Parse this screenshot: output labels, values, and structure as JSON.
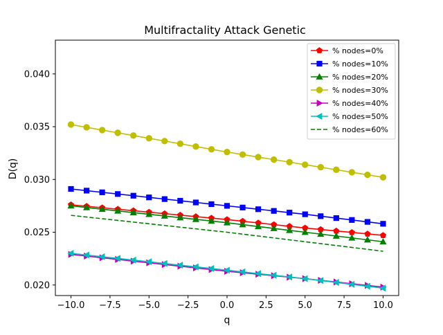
{
  "chart_data": {
    "type": "line",
    "title": "Multifractality Attack Genetic",
    "xlabel": "q",
    "ylabel": "D(q)",
    "xlim": [
      -11,
      11
    ],
    "ylim": [
      0.019,
      0.0432
    ],
    "xticks": [
      -10.0,
      -7.5,
      -5.0,
      -2.5,
      0.0,
      2.5,
      5.0,
      7.5,
      10.0
    ],
    "xtick_labels": [
      "−10.0",
      "−7.5",
      "−5.0",
      "−2.5",
      "0.0",
      "2.5",
      "5.0",
      "7.5",
      "10.0"
    ],
    "yticks": [
      0.02,
      0.025,
      0.03,
      0.035,
      0.04
    ],
    "ytick_labels": [
      "0.020",
      "0.025",
      "0.030",
      "0.035",
      "0.040"
    ],
    "grid": false,
    "legend_position": "top-right",
    "x": [
      -10,
      -9,
      -8,
      -7,
      -6,
      -5,
      -4,
      -3,
      -2,
      -1,
      0,
      1,
      2,
      3,
      4,
      5,
      6,
      7,
      8,
      9,
      10
    ],
    "series": [
      {
        "name": "% nodes=0%",
        "color": "#ff0000",
        "marker": "pentagon",
        "linestyle": "solid",
        "values": [
          0.0276,
          0.02746,
          0.02732,
          0.02718,
          0.02704,
          0.0269,
          0.02676,
          0.02662,
          0.02648,
          0.02634,
          0.0262,
          0.02604,
          0.02588,
          0.02572,
          0.02556,
          0.0254,
          0.02526,
          0.02512,
          0.02498,
          0.02484,
          0.0247
        ]
      },
      {
        "name": "% nodes=10%",
        "color": "#0000ff",
        "marker": "square",
        "linestyle": "solid",
        "values": [
          0.0291,
          0.02894,
          0.02878,
          0.02862,
          0.02846,
          0.0283,
          0.02814,
          0.02798,
          0.02782,
          0.02766,
          0.0275,
          0.02734,
          0.02718,
          0.02702,
          0.02686,
          0.0267,
          0.02652,
          0.02634,
          0.02616,
          0.02598,
          0.0258
        ]
      },
      {
        "name": "% nodes=20%",
        "color": "#008000",
        "marker": "triangle-up",
        "linestyle": "solid",
        "values": [
          0.0275,
          0.02734,
          0.02718,
          0.02702,
          0.02686,
          0.0267,
          0.02654,
          0.02638,
          0.02622,
          0.02606,
          0.0259,
          0.02572,
          0.02554,
          0.02536,
          0.02518,
          0.025,
          0.02482,
          0.02464,
          0.02446,
          0.02428,
          0.0241
        ]
      },
      {
        "name": "% nodes=30%",
        "color": "#bfbf00",
        "marker": "circle",
        "linestyle": "solid",
        "values": [
          0.0352,
          0.03494,
          0.03468,
          0.03442,
          0.03416,
          0.0339,
          0.03364,
          0.03338,
          0.03312,
          0.03286,
          0.0326,
          0.03236,
          0.03212,
          0.03188,
          0.03164,
          0.0314,
          0.03116,
          0.03092,
          0.03068,
          0.03044,
          0.0302
        ]
      },
      {
        "name": "% nodes=40%",
        "color": "#bf00bf",
        "marker": "triangle-right",
        "linestyle": "solid",
        "values": [
          0.0229,
          0.02274,
          0.02258,
          0.02242,
          0.02226,
          0.0221,
          0.02194,
          0.02178,
          0.02162,
          0.02146,
          0.0213,
          0.02116,
          0.02102,
          0.02088,
          0.02074,
          0.0206,
          0.02044,
          0.02028,
          0.02012,
          0.01996,
          0.0198
        ]
      },
      {
        "name": "% nodes=50%",
        "color": "#00bfbf",
        "marker": "triangle-left",
        "linestyle": "solid",
        "values": [
          0.023,
          0.02284,
          0.02268,
          0.02252,
          0.02236,
          0.0222,
          0.02204,
          0.02188,
          0.02172,
          0.02156,
          0.0214,
          0.02124,
          0.02108,
          0.02092,
          0.02076,
          0.0206,
          0.02042,
          0.02024,
          0.02006,
          0.01988,
          0.0197
        ]
      },
      {
        "name": "% nodes=60%",
        "color": "#008000",
        "marker": "none",
        "linestyle": "dashed",
        "values": [
          0.0266,
          0.02644,
          0.02628,
          0.02612,
          0.02596,
          0.0258,
          0.02564,
          0.02548,
          0.02532,
          0.02516,
          0.025,
          0.02482,
          0.02464,
          0.02446,
          0.02428,
          0.0241,
          0.02392,
          0.02374,
          0.02356,
          0.02338,
          0.0232
        ]
      }
    ]
  }
}
